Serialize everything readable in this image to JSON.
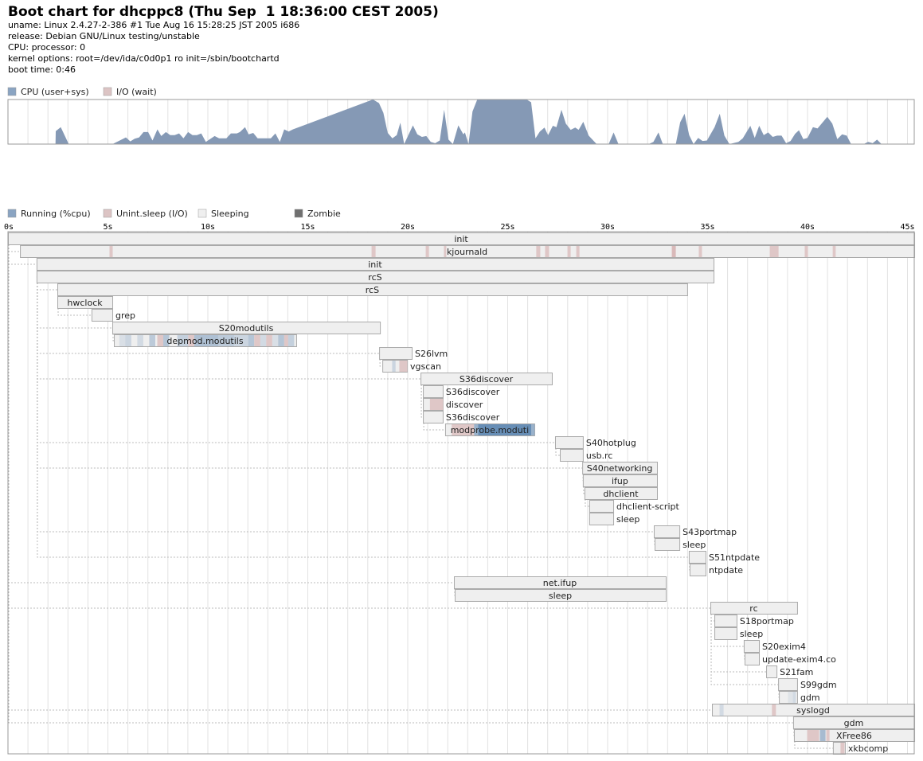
{
  "header": {
    "title": "Boot chart for dhcppc8 (Thu Sep  1 18:36:00 CEST 2005)",
    "lines": [
      "uname: Linux 2.4.27-2-386 #1 Tue Aug 16 15:28:25 JST 2005 i686",
      "release: Debian GNU/Linux testing/unstable",
      "CPU: processor: 0",
      "kernel options: root=/dev/ida/c0d0p1 ro init=/sbin/bootchartd",
      "boot time: 0:46"
    ]
  },
  "colors": {
    "cpu": "#8599b5",
    "cpu_legend": "#8aa4c2",
    "io_legend": "#dcc4c4",
    "running": "#5f88b2",
    "io": "#dfc7c7",
    "sleeping": "#efefef",
    "zombie": "#707070"
  },
  "cpu_legend": {
    "cpu": "CPU (user+sys)",
    "io": "I/O (wait)"
  },
  "proc_legend": {
    "running": "Running (%cpu)",
    "io": "Unint.sleep (I/O)",
    "sleeping": "Sleeping",
    "zombie": "Zombie"
  },
  "chart_data": [
    {
      "type": "area",
      "series": [
        {
          "name": "CPU (user+sys)",
          "unit": "percent"
        }
      ],
      "xlim": [
        0,
        45.34
      ],
      "ylim": [
        0,
        100
      ],
      "grid": true,
      "points": [
        [
          0,
          0
        ],
        [
          2.38,
          0
        ],
        [
          2.39,
          29
        ],
        [
          2.64,
          38
        ],
        [
          3.04,
          0
        ],
        [
          5.23,
          0
        ],
        [
          5.9,
          15
        ],
        [
          6.12,
          6
        ],
        [
          6.34,
          12
        ],
        [
          6.56,
          15
        ],
        [
          6.78,
          27
        ],
        [
          7.01,
          27
        ],
        [
          7.23,
          8
        ],
        [
          7.48,
          33
        ],
        [
          7.67,
          18
        ],
        [
          7.9,
          27
        ],
        [
          8.12,
          20
        ],
        [
          8.34,
          20
        ],
        [
          8.56,
          24
        ],
        [
          8.78,
          13
        ],
        [
          9.01,
          27
        ],
        [
          9.23,
          20
        ],
        [
          9.45,
          20
        ],
        [
          9.67,
          24
        ],
        [
          9.9,
          5
        ],
        [
          10.34,
          18
        ],
        [
          10.56,
          13
        ],
        [
          10.93,
          13
        ],
        [
          11.15,
          24
        ],
        [
          11.45,
          24
        ],
        [
          11.6,
          27
        ],
        [
          11.86,
          38
        ],
        [
          12.04,
          22
        ],
        [
          12.27,
          25
        ],
        [
          12.49,
          13
        ],
        [
          13.15,
          13
        ],
        [
          13.38,
          24
        ],
        [
          13.6,
          5
        ],
        [
          13.82,
          33
        ],
        [
          14.04,
          28
        ],
        [
          14.26,
          33
        ],
        [
          18.26,
          100
        ],
        [
          18.56,
          92
        ],
        [
          18.78,
          70
        ],
        [
          19.0,
          25
        ],
        [
          19.23,
          13
        ],
        [
          19.45,
          20
        ],
        [
          19.63,
          48
        ],
        [
          19.82,
          0
        ],
        [
          20.26,
          42
        ],
        [
          20.48,
          22
        ],
        [
          20.71,
          16
        ],
        [
          20.93,
          18
        ],
        [
          21.15,
          5
        ],
        [
          21.37,
          2
        ],
        [
          21.6,
          8
        ],
        [
          21.82,
          77
        ],
        [
          22.04,
          10
        ],
        [
          22.26,
          0
        ],
        [
          22.53,
          42
        ],
        [
          22.78,
          22
        ],
        [
          22.86,
          26
        ],
        [
          23.04,
          0
        ],
        [
          23.24,
          73
        ],
        [
          23.48,
          100
        ],
        [
          25.94,
          100
        ],
        [
          26.17,
          94
        ],
        [
          26.39,
          13
        ],
        [
          26.61,
          28
        ],
        [
          26.84,
          37
        ],
        [
          27.02,
          20
        ],
        [
          27.26,
          41
        ],
        [
          27.44,
          38
        ],
        [
          27.69,
          77
        ],
        [
          27.91,
          46
        ],
        [
          28.15,
          32
        ],
        [
          28.38,
          37
        ],
        [
          28.55,
          32
        ],
        [
          28.78,
          50
        ],
        [
          29.05,
          19
        ],
        [
          29.45,
          0
        ],
        [
          30.05,
          0
        ],
        [
          30.3,
          26
        ],
        [
          30.54,
          0
        ],
        [
          32.06,
          0
        ],
        [
          32.29,
          5
        ],
        [
          32.54,
          26
        ],
        [
          32.76,
          0
        ],
        [
          33.41,
          0
        ],
        [
          33.63,
          49
        ],
        [
          33.85,
          68
        ],
        [
          34.08,
          20
        ],
        [
          34.3,
          0
        ],
        [
          34.53,
          14
        ],
        [
          34.75,
          7
        ],
        [
          34.97,
          8
        ],
        [
          35.35,
          38
        ],
        [
          35.61,
          68
        ],
        [
          35.84,
          19
        ],
        [
          36.09,
          0
        ],
        [
          36.54,
          5
        ],
        [
          36.76,
          13
        ],
        [
          37.14,
          41
        ],
        [
          37.36,
          14
        ],
        [
          37.58,
          41
        ],
        [
          37.81,
          20
        ],
        [
          38.03,
          26
        ],
        [
          38.26,
          16
        ],
        [
          38.48,
          19
        ],
        [
          38.7,
          19
        ],
        [
          38.93,
          2
        ],
        [
          39.15,
          7
        ],
        [
          39.38,
          23
        ],
        [
          39.57,
          31
        ],
        [
          39.79,
          11
        ],
        [
          40.0,
          14
        ],
        [
          40.27,
          38
        ],
        [
          40.5,
          35
        ],
        [
          40.99,
          61
        ],
        [
          41.24,
          46
        ],
        [
          41.49,
          11
        ],
        [
          41.73,
          22
        ],
        [
          41.96,
          19
        ],
        [
          42.18,
          0
        ],
        [
          42.81,
          0
        ],
        [
          43.03,
          5
        ],
        [
          43.26,
          2
        ],
        [
          43.48,
          10
        ],
        [
          43.7,
          0
        ],
        [
          45.34,
          0
        ]
      ]
    },
    {
      "type": "gantt",
      "xlim": [
        0,
        45.34
      ],
      "x_ticks": [
        "0s",
        "5s",
        "10s",
        "15s",
        "20s",
        "25s",
        "30s",
        "35s",
        "40s",
        "45s"
      ],
      "x_tick_values": [
        0,
        5,
        10,
        15,
        20,
        25,
        30,
        35,
        40,
        45
      ],
      "grid": true,
      "processes": [
        {
          "name": "init",
          "start": 0,
          "end": 45.34,
          "parent": null,
          "segments": []
        },
        {
          "name": "kjournald",
          "start": 0.6,
          "end": 45.34,
          "parent": 0,
          "segments": [
            [
              5.06,
              5.22,
              "io",
              1
            ],
            [
              18.17,
              18.37,
              "io",
              1
            ],
            [
              20.88,
              21.04,
              "io",
              1
            ],
            [
              21.79,
              21.91,
              "io",
              1
            ],
            [
              26.41,
              26.61,
              "io",
              1
            ],
            [
              26.85,
              27.05,
              "io",
              1
            ],
            [
              27.97,
              28.13,
              "io",
              1
            ],
            [
              28.41,
              28.57,
              "io",
              1
            ],
            [
              33.19,
              33.39,
              "io",
              1.3
            ],
            [
              34.54,
              34.7,
              "io",
              1
            ],
            [
              38.09,
              38.53,
              "io",
              1
            ],
            [
              39.84,
              40.0,
              "io",
              1
            ],
            [
              41.24,
              41.39,
              "io",
              1
            ]
          ]
        },
        {
          "name": "init",
          "start": 1.43,
          "end": 35.3,
          "parent": 0,
          "segments": []
        },
        {
          "name": "rcS",
          "start": 1.43,
          "end": 35.3,
          "parent": 2,
          "segments": []
        },
        {
          "name": "rcS",
          "start": 2.47,
          "end": 33.98,
          "parent": 3,
          "segments": []
        },
        {
          "name": "hwclock",
          "start": 2.47,
          "end": 5.22,
          "parent": 4,
          "segments": []
        },
        {
          "name": "grep",
          "start": 4.18,
          "end": 5.22,
          "parent": 4,
          "segments": []
        },
        {
          "name": "S20modutils",
          "start": 5.22,
          "end": 18.61,
          "parent": 3,
          "segments": []
        },
        {
          "name": "depmod.modutils",
          "start": 5.3,
          "end": 14.42,
          "parent": 7,
          "segments": [
            [
              5.55,
              5.85,
              "run",
              0.15
            ],
            [
              5.85,
              6.15,
              "run",
              0.25
            ],
            [
              6.45,
              6.75,
              "run",
              0.2
            ],
            [
              7.05,
              7.35,
              "run",
              0.35
            ],
            [
              7.45,
              7.75,
              "io",
              1
            ],
            [
              7.75,
              8.05,
              "run",
              0.4
            ],
            [
              8.45,
              9.0,
              "run",
              0.3
            ],
            [
              9.0,
              9.3,
              "io",
              1
            ],
            [
              9.3,
              10.5,
              "run",
              0.45
            ],
            [
              10.5,
              11.3,
              "run",
              0.35
            ],
            [
              11.3,
              12.0,
              "run",
              0.25
            ],
            [
              12.0,
              12.3,
              "run",
              0.4
            ],
            [
              12.3,
              12.6,
              "io",
              1
            ],
            [
              12.6,
              12.9,
              "run",
              0.2
            ],
            [
              12.9,
              13.2,
              "io",
              1
            ],
            [
              13.2,
              13.5,
              "run",
              0.15
            ],
            [
              13.5,
              13.8,
              "run",
              0.4
            ],
            [
              13.8,
              14.0,
              "io",
              1
            ],
            [
              14.0,
              14.3,
              "run",
              0.3
            ]
          ]
        },
        {
          "name": "S26lvm",
          "start": 18.57,
          "end": 20.2,
          "parent": 3,
          "segments": []
        },
        {
          "name": "vgscan",
          "start": 18.73,
          "end": 19.96,
          "parent": 9,
          "segments": [
            [
              19.2,
              19.37,
              "run",
              0.25
            ],
            [
              19.56,
              19.96,
              "io",
              1
            ]
          ]
        },
        {
          "name": "S36discover",
          "start": 20.64,
          "end": 27.21,
          "parent": 3,
          "segments": []
        },
        {
          "name": "S36discover",
          "start": 20.76,
          "end": 21.75,
          "parent": 11,
          "segments": []
        },
        {
          "name": "discover",
          "start": 20.76,
          "end": 21.75,
          "parent": 12,
          "segments": [
            [
              21.09,
              21.75,
              "io",
              1
            ]
          ]
        },
        {
          "name": "S36discover",
          "start": 20.76,
          "end": 21.75,
          "parent": 11,
          "segments": []
        },
        {
          "name": "modprobe.moduti",
          "start": 21.87,
          "end": 26.33,
          "parent": 14,
          "segments": [
            [
              22.18,
              23.3,
              "io",
              1
            ],
            [
              23.3,
              23.5,
              "run",
              0.6
            ],
            [
              23.5,
              26.16,
              "run",
              0.95
            ],
            [
              26.16,
              26.33,
              "run",
              0.6
            ]
          ]
        },
        {
          "name": "S40hotplug",
          "start": 27.37,
          "end": 28.76,
          "parent": 3,
          "segments": []
        },
        {
          "name": "usb.rc",
          "start": 27.61,
          "end": 28.76,
          "parent": 16,
          "segments": []
        },
        {
          "name": "S40networking",
          "start": 28.73,
          "end": 32.47,
          "parent": 3,
          "segments": []
        },
        {
          "name": "ifup",
          "start": 28.76,
          "end": 32.47,
          "parent": 18,
          "segments": []
        },
        {
          "name": "dhclient",
          "start": 28.84,
          "end": 32.47,
          "parent": 19,
          "segments": []
        },
        {
          "name": "dhclient-script",
          "start": 29.08,
          "end": 30.28,
          "parent": 20,
          "segments": []
        },
        {
          "name": "sleep",
          "start": 29.08,
          "end": 30.28,
          "parent": 21,
          "segments": []
        },
        {
          "name": "S43portmap",
          "start": 32.31,
          "end": 33.59,
          "parent": 3,
          "segments": []
        },
        {
          "name": "sleep",
          "start": 32.35,
          "end": 33.59,
          "parent": 23,
          "segments": []
        },
        {
          "name": "S51ntpdate",
          "start": 34.06,
          "end": 34.9,
          "parent": 3,
          "segments": []
        },
        {
          "name": "ntpdate",
          "start": 34.1,
          "end": 34.9,
          "parent": 25,
          "segments": []
        },
        {
          "name": "net.ifup",
          "start": 22.31,
          "end": 32.91,
          "parent": 0,
          "segments": []
        },
        {
          "name": "sleep",
          "start": 22.35,
          "end": 32.91,
          "parent": 27,
          "segments": []
        },
        {
          "name": "rc",
          "start": 35.14,
          "end": 39.48,
          "parent": 0,
          "segments": []
        },
        {
          "name": "S18portmap",
          "start": 35.34,
          "end": 36.45,
          "parent": 29,
          "segments": []
        },
        {
          "name": "sleep",
          "start": 35.34,
          "end": 36.45,
          "parent": 30,
          "segments": []
        },
        {
          "name": "S20exim4",
          "start": 36.81,
          "end": 37.57,
          "parent": 29,
          "segments": []
        },
        {
          "name": "update-exim4.co",
          "start": 36.85,
          "end": 37.57,
          "parent": 32,
          "segments": []
        },
        {
          "name": "S21fam",
          "start": 37.93,
          "end": 38.45,
          "parent": 29,
          "segments": []
        },
        {
          "name": "S99gdm",
          "start": 38.53,
          "end": 39.48,
          "parent": 29,
          "segments": []
        },
        {
          "name": "gdm",
          "start": 38.57,
          "end": 39.48,
          "parent": 35,
          "segments": [
            [
              39.0,
              39.25,
              "run",
              0.1
            ],
            [
              39.25,
              39.4,
              "run",
              0.2
            ]
          ]
        },
        {
          "name": "syslogd",
          "start": 35.22,
          "end": 45.34,
          "parent": 0,
          "segments": [
            [
              35.58,
              35.78,
              "run",
              0.2
            ],
            [
              38.2,
              38.4,
              "io",
              1
            ]
          ]
        },
        {
          "name": "gdm",
          "start": 39.28,
          "end": 45.34,
          "parent": 0,
          "segments": []
        },
        {
          "name": "XFree86",
          "start": 39.32,
          "end": 45.34,
          "parent": 38,
          "segments": [
            [
              39.96,
              40.56,
              "io",
              1
            ],
            [
              40.6,
              40.88,
              "run",
              0.5
            ],
            [
              40.92,
              41.08,
              "io",
              1
            ]
          ]
        },
        {
          "name": "xkbcomp",
          "start": 41.27,
          "end": 41.87,
          "parent": 39,
          "segments": [
            [
              41.63,
              41.83,
              "io",
              1
            ]
          ]
        }
      ]
    }
  ]
}
